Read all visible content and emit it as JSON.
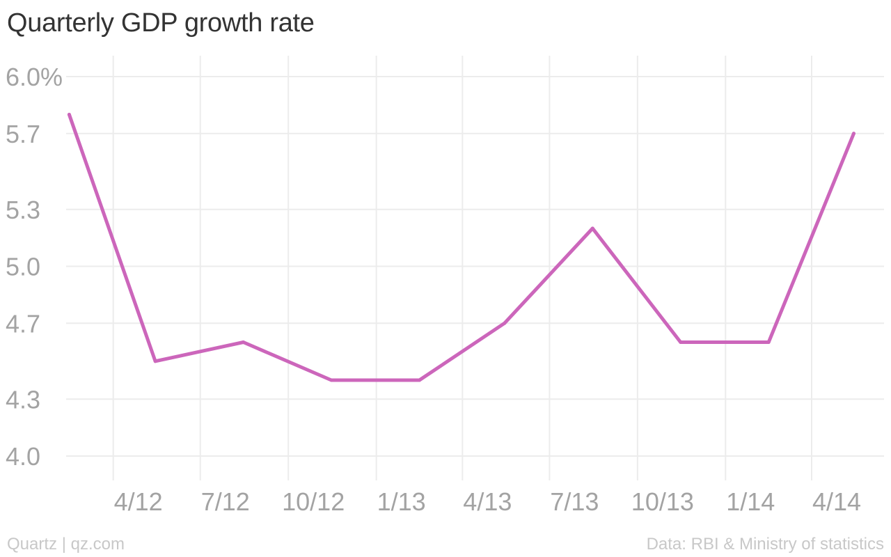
{
  "chart_data": {
    "type": "line",
    "title": "Quarterly GDP growth rate",
    "xlabel": "",
    "ylabel": "",
    "x_tick_labels": [
      "4/12",
      "7/12",
      "10/12",
      "1/13",
      "4/13",
      "7/13",
      "10/13",
      "1/14",
      "4/14"
    ],
    "y_tick_labels": [
      "6.0%",
      "5.7",
      "5.3",
      "5.0",
      "4.7",
      "4.3",
      "4.0"
    ],
    "y_ticks": [
      6.0,
      5.7,
      5.3,
      5.0,
      4.7,
      4.3,
      4.0
    ],
    "ylim": [
      4.0,
      6.0
    ],
    "grid": true,
    "line_color": "#cc66bb",
    "series": [
      {
        "x": [
          "2012-02-15",
          "2012-05-15",
          "2012-08-15",
          "2012-11-15",
          "2013-02-15",
          "2013-05-15",
          "2013-08-15",
          "2013-11-15",
          "2014-02-15",
          "2014-05-15"
        ],
        "values": [
          5.8,
          4.5,
          4.6,
          4.4,
          4.4,
          4.7,
          5.2,
          4.6,
          4.6,
          5.7
        ]
      }
    ]
  },
  "footer": {
    "source_left": "Quartz | qz.com",
    "source_right": "Data: RBI & Ministry of statistics"
  }
}
